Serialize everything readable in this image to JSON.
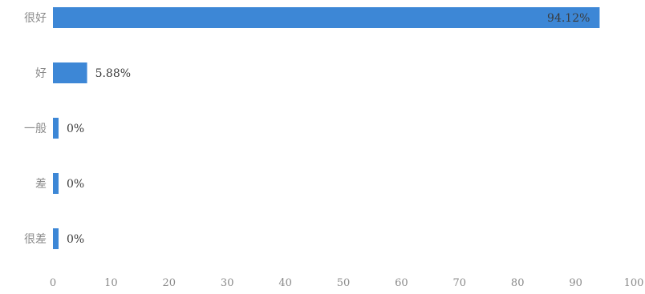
{
  "chart_data": {
    "type": "bar",
    "orientation": "horizontal",
    "categories": [
      "很好",
      "好",
      "一般",
      "差",
      "很差"
    ],
    "values": [
      94.12,
      5.88,
      0,
      0,
      0
    ],
    "value_labels": [
      "94.12%",
      "5.88%",
      "0%",
      "0%",
      "0%"
    ],
    "xlim": [
      0,
      100
    ],
    "xticks": [
      "0",
      "10",
      "20",
      "30",
      "40",
      "50",
      "60",
      "70",
      "80",
      "90",
      "100"
    ],
    "grid": false,
    "legend": "none",
    "colors": {
      "bar": "#3d87d6",
      "text": "#8a8a8a",
      "value_text": "#3a3a3a"
    }
  }
}
